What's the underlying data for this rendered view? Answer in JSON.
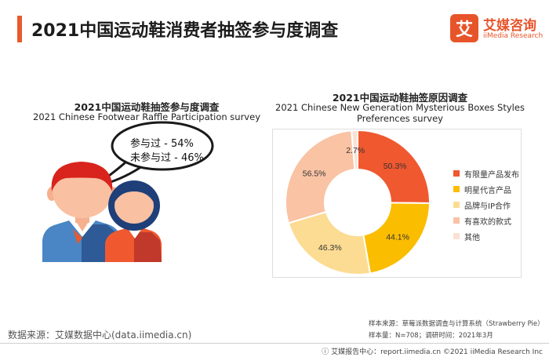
{
  "header": {
    "title": "2021中国运动鞋消费者抽签参与度调查"
  },
  "logo": {
    "mark": "艾",
    "cn": "艾媒咨询",
    "en": "iiMedia Research"
  },
  "left": {
    "title_cn": "2021中国运动鞋抽签参与度调查",
    "title_en": "2021 Chinese Footwear Raffle Participation survey",
    "bubble_line1": "参与过 - 54%",
    "bubble_line2": "未参与过 - 46%"
  },
  "chart_data": {
    "type": "pie",
    "title": "2021中国运动鞋抽签原因调查",
    "subtitle": "2021 Chinese New Generation Mysterious Boxes Styles Preferences survey",
    "categories": [
      "有限量产品发布",
      "明星代言产品",
      "品牌与IP合作",
      "有喜欢的款式",
      "其他"
    ],
    "values": [
      50.3,
      44.1,
      46.3,
      56.5,
      2.7
    ],
    "labels": [
      "50.3%",
      "44.1%",
      "46.3%",
      "56.5%",
      "2.7%"
    ],
    "colors": [
      "#f0582f",
      "#fbbd00",
      "#fcdc93",
      "#f9c3a4",
      "#fbe0d4"
    ],
    "legend_position": "right"
  },
  "footer": {
    "source": "数据来源：艾媒数据中心(data.iimedia.cn)",
    "note1": "样本来源：草莓派数据调查与计算系统（Strawberry Pie）",
    "note2": "样本量：N=708；调研时间：2021年3月",
    "copyright": "ⓘ 艾媒报告中心：report.iimedia.cn   ©2021  iiMedia Research  Inc"
  }
}
